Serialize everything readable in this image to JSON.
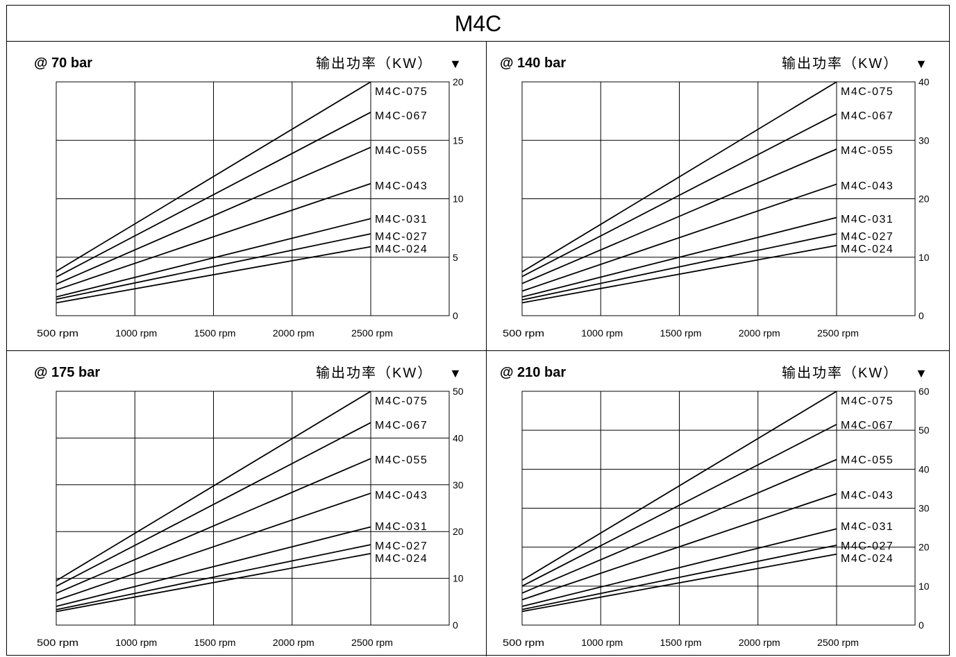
{
  "page": {
    "title": "M4C"
  },
  "chart_data": [
    {
      "type": "line",
      "title": "@ 70 bar",
      "ylabel": "输出功率（KW）",
      "unit_marker": "▼",
      "x_tick_labels": [
        "500 rpm",
        "1000 rpm",
        "1500 rpm",
        "2000 rpm",
        "2500 rpm"
      ],
      "y_ticks": [
        0,
        5,
        10,
        15,
        20
      ],
      "xlim": [
        500,
        2950
      ],
      "ylim": [
        0,
        20
      ],
      "grid": true,
      "x": [
        500,
        2500
      ],
      "series": [
        {
          "name": "M4C-075",
          "values": [
            3.8,
            20.0
          ]
        },
        {
          "name": "M4C-067",
          "values": [
            3.3,
            17.4
          ]
        },
        {
          "name": "M4C-055",
          "values": [
            2.7,
            14.4
          ]
        },
        {
          "name": "M4C-043",
          "values": [
            2.2,
            11.3
          ]
        },
        {
          "name": "M4C-031",
          "values": [
            1.6,
            8.3
          ]
        },
        {
          "name": "M4C-027",
          "values": [
            1.4,
            7.0
          ]
        },
        {
          "name": "M4C-024",
          "values": [
            1.1,
            5.9
          ]
        }
      ]
    },
    {
      "type": "line",
      "title": "@ 140 bar",
      "ylabel": "输出功率（KW）",
      "unit_marker": "▼",
      "x_tick_labels": [
        "500 rpm",
        "1000 rpm",
        "1500 rpm",
        "2000 rpm",
        "2500 rpm"
      ],
      "y_ticks": [
        0,
        10,
        20,
        30,
        40
      ],
      "xlim": [
        500,
        2950
      ],
      "ylim": [
        0,
        40
      ],
      "grid": true,
      "x": [
        500,
        2500
      ],
      "series": [
        {
          "name": "M4C-075",
          "values": [
            7.5,
            40.0
          ]
        },
        {
          "name": "M4C-067",
          "values": [
            6.7,
            34.5
          ]
        },
        {
          "name": "M4C-055",
          "values": [
            5.5,
            28.5
          ]
        },
        {
          "name": "M4C-043",
          "values": [
            4.2,
            22.5
          ]
        },
        {
          "name": "M4C-031",
          "values": [
            3.2,
            16.8
          ]
        },
        {
          "name": "M4C-027",
          "values": [
            2.7,
            14.0
          ]
        },
        {
          "name": "M4C-024",
          "values": [
            2.2,
            12.0
          ]
        }
      ]
    },
    {
      "type": "line",
      "title": "@ 175 bar",
      "ylabel": "输出功率（KW）",
      "unit_marker": "▼",
      "x_tick_labels": [
        "500 rpm",
        "1000 rpm",
        "1500 rpm",
        "2000 rpm",
        "2500 rpm"
      ],
      "y_ticks": [
        0,
        10,
        20,
        30,
        40,
        50
      ],
      "xlim": [
        500,
        2950
      ],
      "ylim": [
        0,
        50
      ],
      "grid": true,
      "x": [
        500,
        2500
      ],
      "series": [
        {
          "name": "M4C-075",
          "values": [
            9.5,
            50.0
          ]
        },
        {
          "name": "M4C-067",
          "values": [
            8.3,
            43.3
          ]
        },
        {
          "name": "M4C-055",
          "values": [
            6.8,
            35.6
          ]
        },
        {
          "name": "M4C-043",
          "values": [
            5.3,
            28.2
          ]
        },
        {
          "name": "M4C-031",
          "values": [
            4.0,
            21.0
          ]
        },
        {
          "name": "M4C-027",
          "values": [
            3.3,
            17.2
          ]
        },
        {
          "name": "M4C-024",
          "values": [
            2.9,
            15.3
          ]
        }
      ]
    },
    {
      "type": "line",
      "title": "@ 210 bar",
      "ylabel": "输出功率（KW）",
      "unit_marker": "▼",
      "x_tick_labels": [
        "500 rpm",
        "1000 rpm",
        "1500 rpm",
        "2000 rpm",
        "2500 rpm"
      ],
      "y_ticks": [
        0,
        10,
        20,
        30,
        40,
        50,
        60
      ],
      "xlim": [
        500,
        2950
      ],
      "ylim": [
        0,
        60
      ],
      "grid": true,
      "x": [
        500,
        2500
      ],
      "series": [
        {
          "name": "M4C-075",
          "values": [
            11.5,
            60.0
          ]
        },
        {
          "name": "M4C-067",
          "values": [
            10.0,
            51.5
          ]
        },
        {
          "name": "M4C-055",
          "values": [
            8.2,
            42.5
          ]
        },
        {
          "name": "M4C-043",
          "values": [
            6.5,
            33.7
          ]
        },
        {
          "name": "M4C-031",
          "values": [
            4.8,
            24.7
          ]
        },
        {
          "name": "M4C-027",
          "values": [
            4.0,
            20.5
          ]
        },
        {
          "name": "M4C-024",
          "values": [
            3.5,
            18.2
          ]
        }
      ]
    }
  ]
}
